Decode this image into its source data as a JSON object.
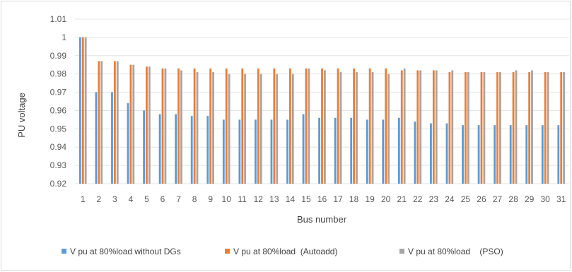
{
  "chart_data": {
    "type": "bar",
    "title": "",
    "xlabel": "Bus number",
    "ylabel": "PU voltage",
    "ylim": [
      0.92,
      1.01
    ],
    "yticks": [
      "0.92",
      "0.93",
      "0.94",
      "0.95",
      "0.96",
      "0.97",
      "0.98",
      "0.99",
      "1",
      "1.01"
    ],
    "grid": true,
    "legend_position": "bottom",
    "categories": [
      "1",
      "2",
      "3",
      "4",
      "5",
      "6",
      "7",
      "8",
      "9",
      "10",
      "11",
      "12",
      "13",
      "14",
      "15",
      "16",
      "17",
      "18",
      "19",
      "20",
      "21",
      "22",
      "23",
      "24",
      "25",
      "26",
      "27",
      "28",
      "29",
      "30",
      "31"
    ],
    "series": [
      {
        "name": "V pu at 80%load without DGs",
        "color": "#5b9bd5",
        "values": [
          1.0,
          0.97,
          0.97,
          0.964,
          0.96,
          0.958,
          0.958,
          0.957,
          0.957,
          0.955,
          0.955,
          0.955,
          0.955,
          0.955,
          0.958,
          0.956,
          0.956,
          0.956,
          0.955,
          0.955,
          0.956,
          0.954,
          0.953,
          0.953,
          0.952,
          0.952,
          0.952,
          0.952,
          0.952,
          0.952,
          0.952
        ]
      },
      {
        "name": "V pu at 80%load  (Autoadd)",
        "color": "#ed7d31",
        "values": [
          1.0,
          0.987,
          0.987,
          0.985,
          0.984,
          0.983,
          0.983,
          0.983,
          0.983,
          0.983,
          0.983,
          0.983,
          0.983,
          0.983,
          0.983,
          0.983,
          0.983,
          0.983,
          0.983,
          0.983,
          0.982,
          0.982,
          0.982,
          0.981,
          0.981,
          0.981,
          0.981,
          0.981,
          0.981,
          0.981,
          0.981
        ]
      },
      {
        "name": "V pu at 80%load    (PSO)",
        "color": "#a5a5a5",
        "values": [
          1.0,
          0.987,
          0.987,
          0.985,
          0.984,
          0.983,
          0.982,
          0.981,
          0.981,
          0.98,
          0.98,
          0.98,
          0.98,
          0.98,
          0.983,
          0.982,
          0.981,
          0.981,
          0.981,
          0.98,
          0.983,
          0.982,
          0.982,
          0.982,
          0.981,
          0.981,
          0.981,
          0.982,
          0.982,
          0.981,
          0.981
        ]
      }
    ]
  }
}
